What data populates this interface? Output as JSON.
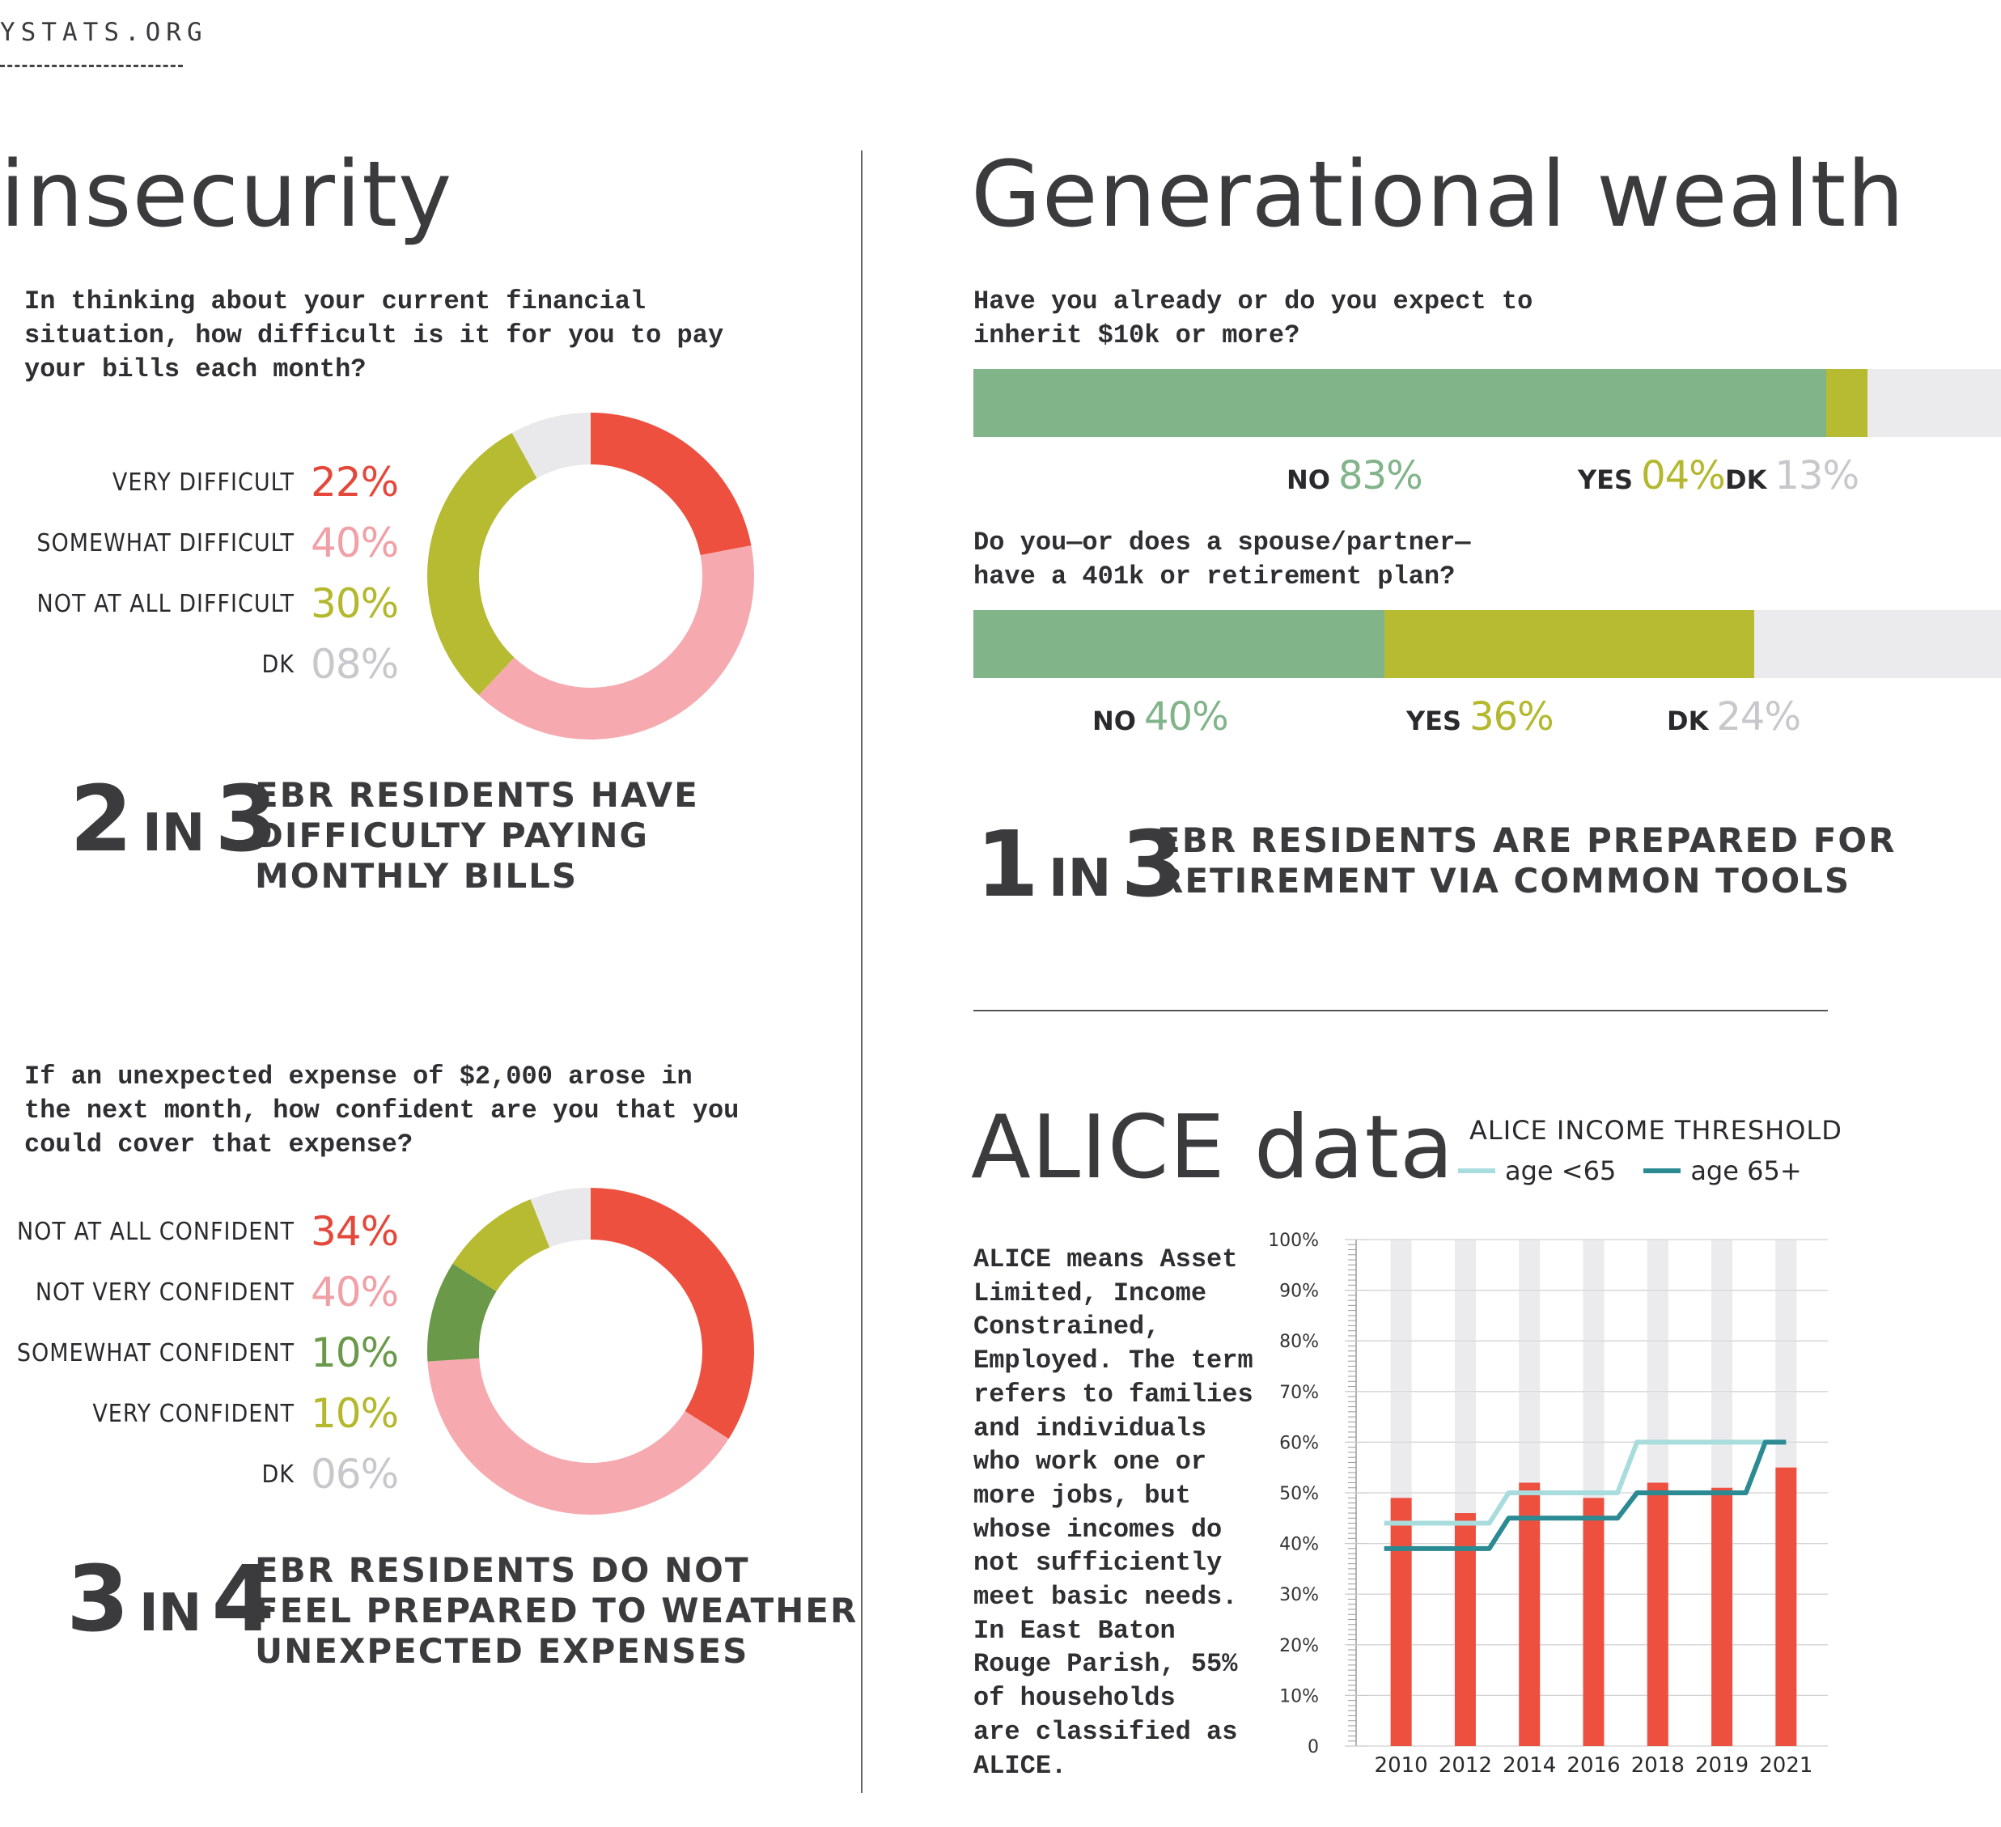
{
  "header": {
    "site": "YSTATS.ORG"
  },
  "insecurity": {
    "title": "insecurity",
    "q1": {
      "question_lines": [
        "In thinking about your current financial",
        "situation, how difficult is it for you to pay",
        "your bills each month?"
      ],
      "items": [
        {
          "label": "VERY DIFFICULT",
          "pct": "22%",
          "color": "#ee503f"
        },
        {
          "label": "SOMEWHAT DIFFICULT",
          "pct": "40%",
          "color": "#f6aab0"
        },
        {
          "label": "NOT AT ALL DIFFICULT",
          "pct": "30%",
          "color": "#b6bb31"
        },
        {
          "label": "DK",
          "pct": "08%",
          "color": "#e9e9eb"
        }
      ],
      "pct_colors": [
        "#e4483a",
        "#f0a0a6",
        "#b3b82d",
        "#c8c8cc"
      ],
      "stat": {
        "num1": "2",
        "in": "IN",
        "num2": "3",
        "lines": [
          "EBR RESIDENTS HAVE",
          "DIFFICULTY PAYING",
          "MONTHLY BILLS"
        ]
      }
    },
    "q2": {
      "question_lines": [
        "If an unexpected expense of $2,000 arose in",
        "the next month, how confident are you that you",
        "could cover that expense?"
      ],
      "items": [
        {
          "label": "NOT AT ALL CONFIDENT",
          "pct": "34%",
          "color": "#ee503f"
        },
        {
          "label": "NOT VERY CONFIDENT",
          "pct": "40%",
          "color": "#f6aab0"
        },
        {
          "label": "SOMEWHAT CONFIDENT",
          "pct": "10%",
          "color": "#6a994a"
        },
        {
          "label": "VERY CONFIDENT",
          "pct": "10%",
          "color": "#b6bb31"
        },
        {
          "label": "DK",
          "pct": "06%",
          "color": "#e9e9eb"
        }
      ],
      "pct_colors": [
        "#e4483a",
        "#f0a0a6",
        "#6a994a",
        "#b3b82d",
        "#c8c8cc"
      ],
      "stat": {
        "num1": "3",
        "in": "IN",
        "num2": "4",
        "lines": [
          "EBR RESIDENTS DO NOT",
          "FEEL PREPARED TO WEATHER",
          "UNEXPECTED EXPENSES"
        ]
      }
    }
  },
  "wealth": {
    "title": "Generational wealth",
    "q1": {
      "question_lines": [
        "Have you already or do you expect to",
        "inherit $10k or more?"
      ],
      "segments": [
        {
          "key": "NO",
          "pct": "83%",
          "value": 83,
          "color": "#82b48a",
          "label_color": "#82b48a"
        },
        {
          "key": "YES",
          "pct": "04%",
          "value": 4,
          "color": "#b6bb31",
          "label_color": "#b3b82d"
        },
        {
          "key": "DK",
          "pct": "13%",
          "value": 13,
          "color": "#ebebed",
          "label_color": "#c8c8cc"
        }
      ]
    },
    "q2": {
      "question_lines": [
        "Do you—or does a spouse/partner—",
        "have a 401k or retirement plan?"
      ],
      "segments": [
        {
          "key": "NO",
          "pct": "40%",
          "value": 40,
          "color": "#82b48a",
          "label_color": "#82b48a"
        },
        {
          "key": "YES",
          "pct": "36%",
          "value": 36,
          "color": "#b6bb31",
          "label_color": "#b3b82d"
        },
        {
          "key": "DK",
          "pct": "24%",
          "value": 24,
          "color": "#ebebed",
          "label_color": "#c8c8cc"
        }
      ]
    },
    "stat": {
      "num1": "1",
      "in": "IN",
      "num2": "3",
      "lines": [
        "EBR RESIDENTS ARE PREPARED FOR",
        "RETIREMENT VIA COMMON TOOLS"
      ]
    }
  },
  "alice": {
    "title": "ALICE data",
    "legend_title": "ALICE INCOME THRESHOLD",
    "legend": [
      {
        "label": "age <65",
        "color": "#a9dcdd"
      },
      {
        "label": "age 65+",
        "color": "#2b8a92"
      }
    ],
    "description_lines": [
      "ALICE means Asset",
      "Limited, Income",
      "Constrained,",
      "Employed. The term",
      "refers to families",
      "and individuals",
      "who work one or",
      "more jobs, but",
      "whose incomes do",
      "not sufficiently",
      "meet basic needs.",
      "In East Baton",
      "Rouge Parish, 55%",
      "of households",
      "are classified as",
      "ALICE."
    ]
  },
  "chart_data": [
    {
      "type": "pie",
      "donut": true,
      "categories": [
        "VERY DIFFICULT",
        "SOMEWHAT DIFFICULT",
        "NOT AT ALL DIFFICULT",
        "DK"
      ],
      "values": [
        22,
        40,
        30,
        8
      ],
      "colors": [
        "#ee503f",
        "#f6aab0",
        "#b6bb31",
        "#e9e9eb"
      ]
    },
    {
      "type": "pie",
      "donut": true,
      "categories": [
        "NOT AT ALL CONFIDENT",
        "NOT VERY CONFIDENT",
        "SOMEWHAT CONFIDENT",
        "VERY CONFIDENT",
        "DK"
      ],
      "values": [
        34,
        40,
        10,
        10,
        6
      ],
      "colors": [
        "#ee503f",
        "#f6aab0",
        "#6a994a",
        "#b6bb31",
        "#e9e9eb"
      ]
    },
    {
      "type": "bar",
      "stacked": true,
      "orientation": "horizontal",
      "categories": [
        "NO",
        "YES",
        "DK"
      ],
      "values": [
        83,
        4,
        13
      ]
    },
    {
      "type": "bar",
      "stacked": true,
      "orientation": "horizontal",
      "categories": [
        "NO",
        "YES",
        "DK"
      ],
      "values": [
        40,
        36,
        24
      ]
    },
    {
      "type": "bar",
      "categories": [
        "2010",
        "2012",
        "2014",
        "2016",
        "2018",
        "2019",
        "2021"
      ],
      "series": [
        {
          "type": "bar",
          "values": [
            49,
            46,
            52,
            49,
            52,
            51,
            55
          ],
          "color": "#ee503f"
        },
        {
          "type": "line",
          "name": "age <65",
          "values": [
            44,
            44,
            50,
            50,
            60,
            60,
            60
          ],
          "color": "#a9dcdd"
        },
        {
          "type": "line",
          "name": "age 65+",
          "values": [
            39,
            39,
            45,
            45,
            50,
            50,
            60
          ],
          "color": "#2b8a92"
        }
      ],
      "y_ticks": [
        "0",
        "10%",
        "20%",
        "30%",
        "40%",
        "50%",
        "60%",
        "70%",
        "80%",
        "90%",
        "100%"
      ],
      "ylim": [
        0,
        100
      ],
      "grid": true,
      "bar_track_color": "#ebebed"
    }
  ]
}
